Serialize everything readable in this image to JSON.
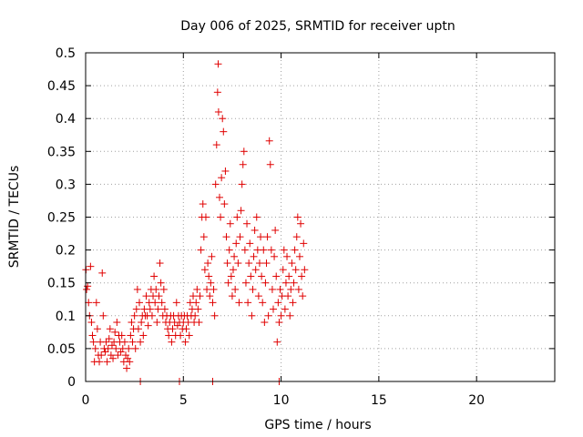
{
  "chart_data": {
    "type": "scatter",
    "title": "Day 006 of 2025, SRMTID for receiver uptn",
    "xlabel": "GPS time / hours",
    "ylabel": "SRMTID / TECUs",
    "xlim": [
      0,
      24
    ],
    "ylim": [
      0,
      0.5
    ],
    "xticks": [
      0,
      5,
      10,
      15,
      20
    ],
    "xtick_labels": [
      "0",
      "5",
      "10",
      "15",
      "20"
    ],
    "yticks": [
      0,
      0.05,
      0.1,
      0.15,
      0.2,
      0.25,
      0.3,
      0.35,
      0.4,
      0.45,
      0.5
    ],
    "ytick_labels": [
      "0",
      "0.05",
      "0.1",
      "0.15",
      "0.2",
      "0.25",
      "0.3",
      "0.35",
      "0.4",
      "0.45",
      "0.5"
    ],
    "grid": true,
    "marker": "+",
    "series_color": "#e00000",
    "series": [
      {
        "name": "SRMTID",
        "points": [
          [
            0.02,
            0.17
          ],
          [
            0.05,
            0.14
          ],
          [
            0.1,
            0.145
          ],
          [
            0.15,
            0.12
          ],
          [
            0.2,
            0.1
          ],
          [
            0.25,
            0.175
          ],
          [
            0.3,
            0.09
          ],
          [
            0.35,
            0.07
          ],
          [
            0.4,
            0.06
          ],
          [
            0.45,
            0.03
          ],
          [
            0.5,
            0.05
          ],
          [
            0.55,
            0.12
          ],
          [
            0.6,
            0.08
          ],
          [
            0.65,
            0.04
          ],
          [
            0.7,
            0.03
          ],
          [
            0.75,
            0.06
          ],
          [
            0.8,
            0.04
          ],
          [
            0.85,
            0.165
          ],
          [
            0.9,
            0.1
          ],
          [
            0.95,
            0.05
          ],
          [
            1.0,
            0.045
          ],
          [
            1.05,
            0.06
          ],
          [
            1.1,
            0.03
          ],
          [
            1.15,
            0.05
          ],
          [
            1.2,
            0.065
          ],
          [
            1.25,
            0.08
          ],
          [
            1.3,
            0.04
          ],
          [
            1.35,
            0.055
          ],
          [
            1.4,
            0.035
          ],
          [
            1.45,
            0.06
          ],
          [
            1.5,
            0.075
          ],
          [
            1.55,
            0.05
          ],
          [
            1.6,
            0.09
          ],
          [
            1.65,
            0.04
          ],
          [
            1.7,
            0.07
          ],
          [
            1.75,
            0.06
          ],
          [
            1.8,
            0.045
          ],
          [
            1.85,
            0.07
          ],
          [
            1.9,
            0.05
          ],
          [
            1.95,
            0.03
          ],
          [
            2.0,
            0.06
          ],
          [
            2.05,
            0.04
          ],
          [
            2.1,
            0.02
          ],
          [
            2.15,
            0.035
          ],
          [
            2.2,
            0.05
          ],
          [
            2.25,
            0.03
          ],
          [
            2.3,
            0.07
          ],
          [
            2.35,
            0.09
          ],
          [
            2.4,
            0.06
          ],
          [
            2.45,
            0.08
          ],
          [
            2.5,
            0.1
          ],
          [
            2.55,
            0.05
          ],
          [
            2.6,
            0.11
          ],
          [
            2.65,
            0.14
          ],
          [
            2.7,
            0.08
          ],
          [
            2.75,
            0.12
          ],
          [
            2.8,
            0.06
          ],
          [
            2.85,
            0.09
          ],
          [
            2.9,
            0.1
          ],
          [
            2.95,
            0.07
          ],
          [
            3.0,
            0.11
          ],
          [
            3.05,
            0.1
          ],
          [
            3.1,
            0.13
          ],
          [
            3.15,
            0.1
          ],
          [
            3.2,
            0.085
          ],
          [
            3.25,
            0.12
          ],
          [
            3.3,
            0.11
          ],
          [
            3.35,
            0.14
          ],
          [
            3.4,
            0.1
          ],
          [
            3.45,
            0.13
          ],
          [
            3.5,
            0.16
          ],
          [
            3.55,
            0.12
          ],
          [
            3.6,
            0.14
          ],
          [
            3.65,
            0.09
          ],
          [
            3.7,
            0.11
          ],
          [
            3.75,
            0.13
          ],
          [
            3.8,
            0.18
          ],
          [
            3.85,
            0.15
          ],
          [
            3.9,
            0.12
          ],
          [
            3.95,
            0.1
          ],
          [
            4.0,
            0.14
          ],
          [
            4.05,
            0.11
          ],
          [
            4.1,
            0.09
          ],
          [
            4.15,
            0.1
          ],
          [
            4.2,
            0.08
          ],
          [
            4.25,
            0.07
          ],
          [
            4.3,
            0.09
          ],
          [
            4.35,
            0.1
          ],
          [
            4.4,
            0.06
          ],
          [
            4.45,
            0.08
          ],
          [
            4.5,
            0.1
          ],
          [
            4.55,
            0.09
          ],
          [
            4.6,
            0.07
          ],
          [
            4.65,
            0.12
          ],
          [
            4.7,
            0.085
          ],
          [
            4.75,
            0.1
          ],
          [
            4.8,
            0.09
          ],
          [
            4.85,
            0.07
          ],
          [
            4.9,
            0.1
          ],
          [
            4.95,
            0.08
          ],
          [
            5.0,
            0.09
          ],
          [
            5.05,
            0.1
          ],
          [
            5.1,
            0.06
          ],
          [
            5.15,
            0.08
          ],
          [
            5.2,
            0.1
          ],
          [
            5.25,
            0.09
          ],
          [
            5.3,
            0.07
          ],
          [
            5.35,
            0.12
          ],
          [
            5.4,
            0.1
          ],
          [
            5.45,
            0.11
          ],
          [
            5.5,
            0.13
          ],
          [
            5.55,
            0.09
          ],
          [
            5.6,
            0.1
          ],
          [
            5.65,
            0.12
          ],
          [
            5.7,
            0.14
          ],
          [
            5.75,
            0.11
          ],
          [
            5.8,
            0.09
          ],
          [
            5.85,
            0.13
          ],
          [
            5.9,
            0.2
          ],
          [
            5.95,
            0.25
          ],
          [
            6.0,
            0.27
          ],
          [
            6.05,
            0.22
          ],
          [
            6.1,
            0.17
          ],
          [
            6.15,
            0.25
          ],
          [
            6.2,
            0.14
          ],
          [
            6.25,
            0.18
          ],
          [
            6.3,
            0.16
          ],
          [
            6.35,
            0.13
          ],
          [
            6.4,
            0.15
          ],
          [
            6.45,
            0.19
          ],
          [
            6.5,
            0.12
          ],
          [
            6.55,
            0.14
          ],
          [
            6.6,
            0.1
          ],
          [
            6.65,
            0.3
          ],
          [
            6.7,
            0.36
          ],
          [
            6.75,
            0.44
          ],
          [
            6.78,
            0.483
          ],
          [
            6.8,
            0.41
          ],
          [
            6.85,
            0.28
          ],
          [
            6.9,
            0.25
          ],
          [
            6.95,
            0.31
          ],
          [
            7.0,
            0.4
          ],
          [
            7.05,
            0.38
          ],
          [
            7.1,
            0.27
          ],
          [
            7.15,
            0.32
          ],
          [
            7.2,
            0.22
          ],
          [
            7.25,
            0.18
          ],
          [
            7.3,
            0.15
          ],
          [
            7.35,
            0.2
          ],
          [
            7.4,
            0.24
          ],
          [
            7.45,
            0.16
          ],
          [
            7.5,
            0.13
          ],
          [
            7.55,
            0.17
          ],
          [
            7.6,
            0.19
          ],
          [
            7.65,
            0.14
          ],
          [
            7.7,
            0.21
          ],
          [
            7.75,
            0.25
          ],
          [
            7.8,
            0.18
          ],
          [
            7.85,
            0.12
          ],
          [
            7.9,
            0.22
          ],
          [
            7.95,
            0.26
          ],
          [
            8.0,
            0.3
          ],
          [
            8.05,
            0.33
          ],
          [
            8.1,
            0.35
          ],
          [
            8.15,
            0.2
          ],
          [
            8.2,
            0.15
          ],
          [
            8.25,
            0.24
          ],
          [
            8.3,
            0.12
          ],
          [
            8.35,
            0.18
          ],
          [
            8.4,
            0.21
          ],
          [
            8.45,
            0.16
          ],
          [
            8.5,
            0.1
          ],
          [
            8.55,
            0.14
          ],
          [
            8.6,
            0.19
          ],
          [
            8.65,
            0.23
          ],
          [
            8.7,
            0.17
          ],
          [
            8.75,
            0.25
          ],
          [
            8.8,
            0.2
          ],
          [
            8.85,
            0.13
          ],
          [
            8.9,
            0.18
          ],
          [
            8.95,
            0.22
          ],
          [
            9.0,
            0.16
          ],
          [
            9.05,
            0.12
          ],
          [
            9.1,
            0.2
          ],
          [
            9.15,
            0.09
          ],
          [
            9.2,
            0.15
          ],
          [
            9.25,
            0.18
          ],
          [
            9.3,
            0.22
          ],
          [
            9.35,
            0.1
          ],
          [
            9.4,
            0.366
          ],
          [
            9.45,
            0.33
          ],
          [
            9.5,
            0.2
          ],
          [
            9.55,
            0.14
          ],
          [
            9.6,
            0.11
          ],
          [
            9.65,
            0.19
          ],
          [
            9.7,
            0.23
          ],
          [
            9.75,
            0.16
          ],
          [
            9.8,
            0.06
          ],
          [
            9.85,
            0.12
          ],
          [
            9.9,
            0.09
          ],
          [
            9.95,
            0.14
          ],
          [
            10.0,
            0.1
          ],
          [
            10.05,
            0.13
          ],
          [
            10.1,
            0.17
          ],
          [
            10.15,
            0.2
          ],
          [
            10.2,
            0.11
          ],
          [
            10.25,
            0.15
          ],
          [
            10.3,
            0.19
          ],
          [
            10.35,
            0.13
          ],
          [
            10.4,
            0.16
          ],
          [
            10.45,
            0.1
          ],
          [
            10.5,
            0.14
          ],
          [
            10.55,
            0.18
          ],
          [
            10.6,
            0.12
          ],
          [
            10.65,
            0.15
          ],
          [
            10.7,
            0.2
          ],
          [
            10.75,
            0.17
          ],
          [
            10.8,
            0.22
          ],
          [
            10.85,
            0.25
          ],
          [
            10.9,
            0.14
          ],
          [
            10.95,
            0.19
          ],
          [
            11.0,
            0.24
          ],
          [
            11.05,
            0.16
          ],
          [
            11.1,
            0.13
          ],
          [
            11.15,
            0.21
          ],
          [
            11.2,
            0.17
          ],
          [
            2.8,
            0.0
          ],
          [
            4.8,
            0.0
          ],
          [
            6.5,
            0.0
          ],
          [
            9.9,
            0.0
          ]
        ]
      }
    ]
  }
}
